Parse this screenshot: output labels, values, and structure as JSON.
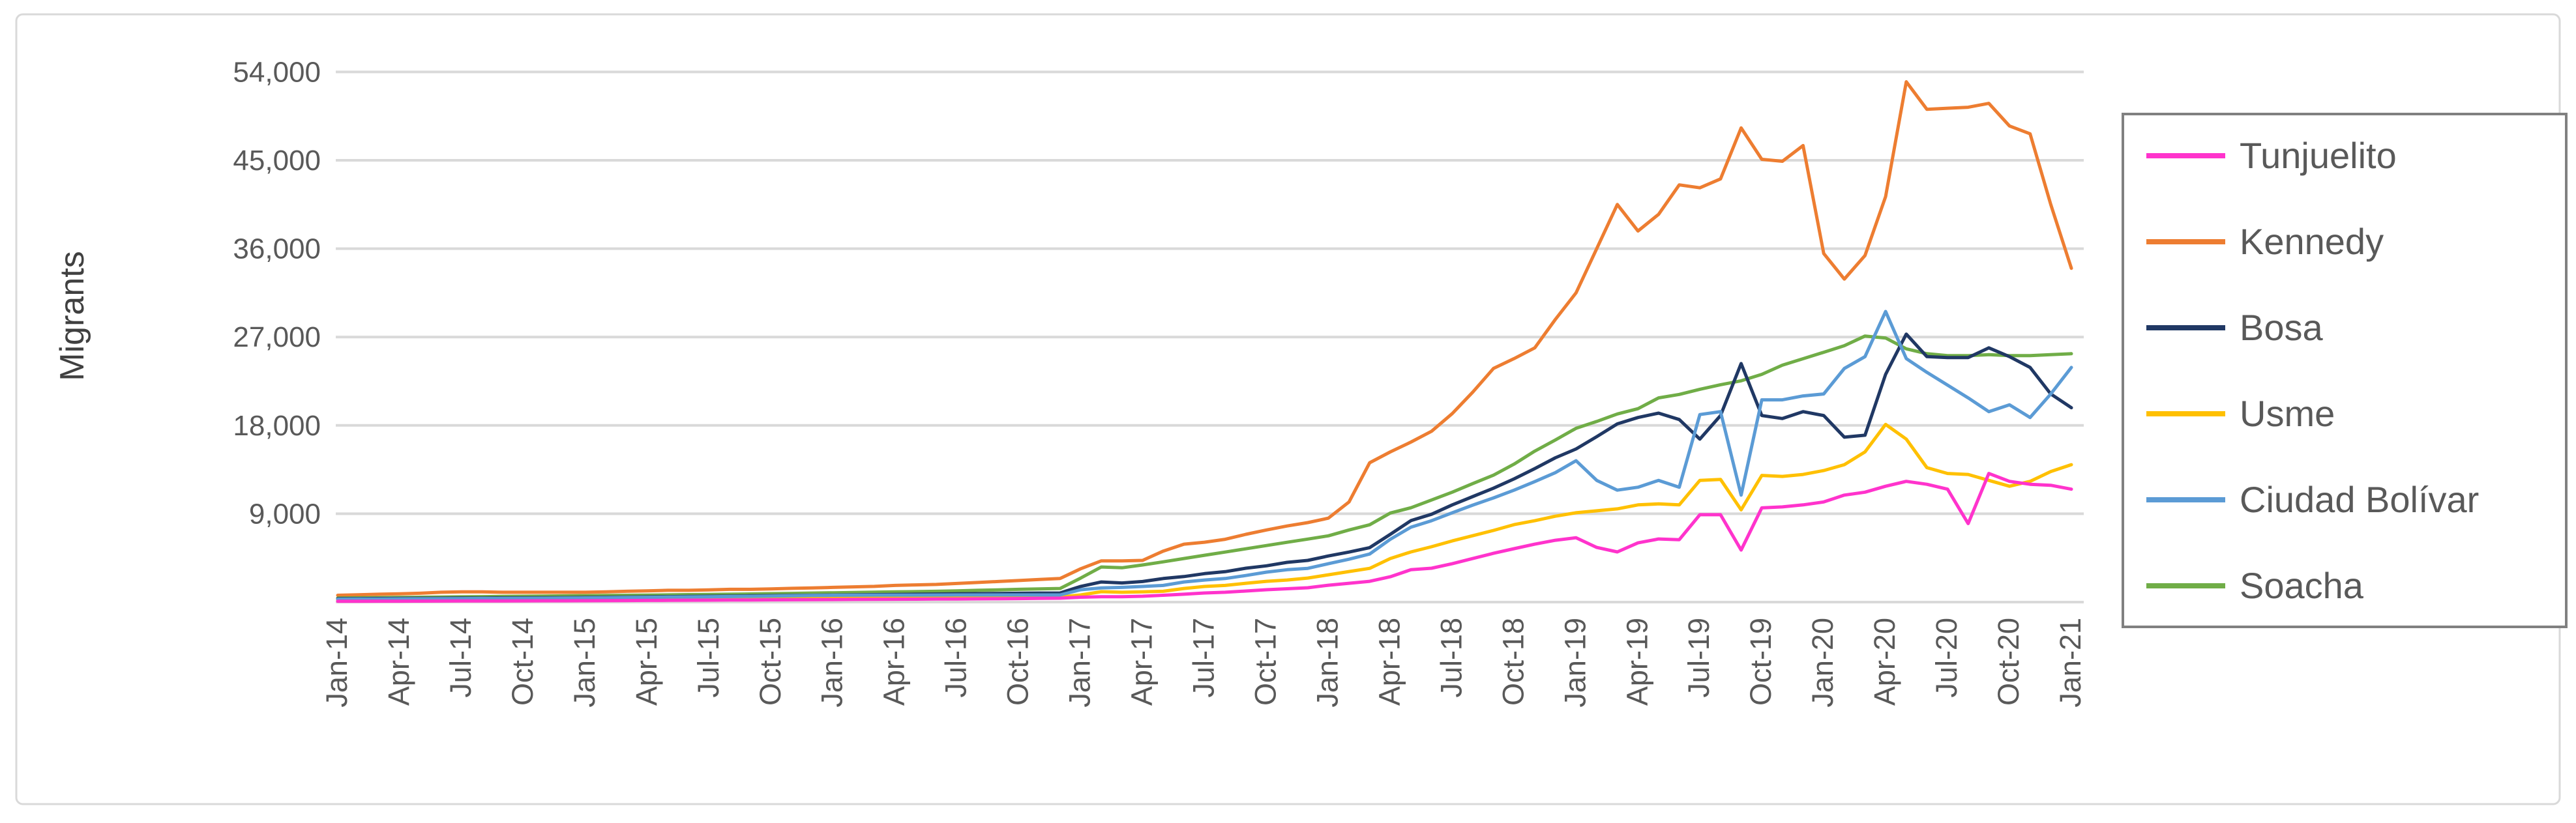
{
  "chart_data": {
    "type": "line",
    "title": "",
    "xlabel": "",
    "ylabel": "Migrants",
    "ylim": [
      0,
      57000
    ],
    "y_grid_interval": 9000,
    "grid": "horizontal-only",
    "legend_position": "right",
    "points_per_series": 85,
    "x_tick_every_n_points": 3,
    "y_ticks": [
      {
        "value": 9000,
        "label": "9,000"
      },
      {
        "value": 18000,
        "label": "18,000"
      },
      {
        "value": 27000,
        "label": "27,000"
      },
      {
        "value": 36000,
        "label": "36,000"
      },
      {
        "value": 45000,
        "label": "45,000"
      },
      {
        "value": 54000,
        "label": "54,000"
      }
    ],
    "x_tick_labels": [
      "Jan-14",
      "Apr-14",
      "Jul-14",
      "Oct-14",
      "Jan-15",
      "Apr-15",
      "Jul-15",
      "Oct-15",
      "Jan-16",
      "Apr-16",
      "Jul-16",
      "Oct-16",
      "Jan-17",
      "Apr-17",
      "Jul-17",
      "Oct-17",
      "Jan-18",
      "Apr-18",
      "Jul-18",
      "Oct-18",
      "Jan-19",
      "Apr-19",
      "Jul-19",
      "Oct-19",
      "Jan-20",
      "Apr-20",
      "Jul-20",
      "Oct-20",
      "Jan-21"
    ],
    "legend_order": [
      "Tunjuelito",
      "Kennedy",
      "Bosa",
      "Usme",
      "Ciudad Bolívar",
      "Soacha"
    ],
    "series": [
      {
        "name": "Kennedy",
        "color": "#ED7D31",
        "values": [
          700,
          750,
          800,
          850,
          900,
          1000,
          1050,
          1050,
          1000,
          1000,
          1000,
          1000,
          1000,
          1050,
          1100,
          1150,
          1200,
          1200,
          1250,
          1300,
          1300,
          1350,
          1400,
          1450,
          1500,
          1550,
          1600,
          1700,
          1750,
          1800,
          1900,
          2000,
          2100,
          2200,
          2300,
          2400,
          3400,
          4200,
          4200,
          4250,
          5200,
          5900,
          6100,
          6400,
          6900,
          7350,
          7750,
          8100,
          8550,
          10200,
          14200,
          15300,
          16300,
          17400,
          19200,
          21400,
          23800,
          24800,
          25900,
          28800,
          31500,
          36000,
          40500,
          37800,
          39500,
          42500,
          42200,
          43100,
          48300,
          45100,
          44900,
          46500,
          35500,
          32900,
          35300,
          41300,
          53000,
          50200,
          50300,
          50400,
          50800,
          48500,
          47700,
          40500,
          34000
        ]
      },
      {
        "name": "Soacha",
        "color": "#70AD47",
        "values": [
          420,
          440,
          460,
          480,
          500,
          520,
          540,
          560,
          580,
          600,
          620,
          640,
          660,
          680,
          700,
          720,
          740,
          760,
          780,
          800,
          830,
          860,
          890,
          920,
          950,
          980,
          1010,
          1040,
          1070,
          1100,
          1150,
          1200,
          1250,
          1300,
          1350,
          1390,
          2450,
          3580,
          3500,
          3780,
          4100,
          4440,
          4770,
          5100,
          5430,
          5760,
          6090,
          6420,
          6750,
          7350,
          7880,
          9070,
          9610,
          10400,
          11200,
          12070,
          12930,
          14060,
          15380,
          16510,
          17700,
          18400,
          19160,
          19700,
          20800,
          21150,
          21680,
          22140,
          22540,
          23200,
          24130,
          24790,
          25450,
          26120,
          27100,
          26900,
          25800,
          25300,
          25100,
          25100,
          25200,
          25100,
          25100,
          25200,
          25300
        ]
      },
      {
        "name": "Bosa",
        "color": "#203864",
        "values": [
          350,
          360,
          370,
          380,
          390,
          400,
          410,
          420,
          430,
          440,
          450,
          460,
          480,
          500,
          520,
          540,
          560,
          580,
          600,
          620,
          640,
          660,
          680,
          700,
          720,
          740,
          760,
          780,
          800,
          820,
          840,
          860,
          880,
          900,
          920,
          930,
          1600,
          2050,
          1950,
          2100,
          2400,
          2600,
          2900,
          3100,
          3450,
          3700,
          4050,
          4250,
          4700,
          5100,
          5550,
          6900,
          8300,
          8950,
          9900,
          10750,
          11600,
          12550,
          13600,
          14700,
          15600,
          16850,
          18150,
          18800,
          19250,
          18600,
          16600,
          19000,
          24300,
          19000,
          18700,
          19400,
          19000,
          16800,
          17000,
          23200,
          27300,
          25000,
          24900,
          24900,
          25900,
          25000,
          23900,
          21200,
          19800
        ]
      },
      {
        "name": "Usme",
        "color": "#FFC000",
        "values": [
          220,
          230,
          240,
          250,
          260,
          270,
          280,
          290,
          300,
          310,
          320,
          330,
          340,
          350,
          360,
          370,
          380,
          390,
          400,
          410,
          420,
          430,
          440,
          450,
          460,
          465,
          470,
          475,
          480,
          485,
          490,
          495,
          500,
          505,
          510,
          520,
          730,
          1060,
          1000,
          1050,
          1100,
          1390,
          1590,
          1700,
          1920,
          2120,
          2250,
          2450,
          2780,
          3110,
          3440,
          4440,
          5110,
          5640,
          6230,
          6760,
          7300,
          7890,
          8290,
          8750,
          9100,
          9300,
          9500,
          9900,
          10000,
          9900,
          12400,
          12500,
          9400,
          12900,
          12800,
          13000,
          13400,
          14000,
          15300,
          18100,
          16600,
          13700,
          13100,
          13000,
          12400,
          11800,
          12300,
          13300,
          14000
        ]
      },
      {
        "name": "Ciudad Bolívar",
        "color": "#5B9BD5",
        "values": [
          300,
          310,
          320,
          330,
          340,
          350,
          360,
          370,
          380,
          390,
          400,
          410,
          430,
          450,
          470,
          490,
          510,
          530,
          550,
          570,
          590,
          620,
          650,
          680,
          700,
          705,
          710,
          715,
          720,
          725,
          730,
          730,
          730,
          730,
          730,
          730,
          1260,
          1450,
          1500,
          1590,
          1700,
          2050,
          2250,
          2400,
          2710,
          3050,
          3300,
          3440,
          3910,
          4370,
          4900,
          6400,
          7630,
          8290,
          9100,
          9880,
          10610,
          11400,
          12270,
          13190,
          14400,
          12400,
          11400,
          11700,
          12400,
          11700,
          19100,
          19400,
          10900,
          20600,
          20600,
          21000,
          21200,
          23800,
          25000,
          29600,
          24800,
          23400,
          22100,
          20800,
          19400,
          20100,
          18800,
          21200,
          23900
        ]
      },
      {
        "name": "Tunjuelito",
        "color": "#FF33CC",
        "values": [
          80,
          85,
          90,
          95,
          100,
          105,
          110,
          115,
          120,
          125,
          130,
          135,
          140,
          150,
          160,
          170,
          180,
          190,
          200,
          210,
          220,
          230,
          240,
          250,
          260,
          270,
          280,
          290,
          300,
          310,
          320,
          330,
          340,
          360,
          380,
          400,
          500,
          550,
          550,
          600,
          700,
          800,
          930,
          1000,
          1130,
          1260,
          1360,
          1460,
          1720,
          1920,
          2120,
          2580,
          3300,
          3450,
          3910,
          4440,
          4970,
          5440,
          5900,
          6300,
          6560,
          5570,
          5110,
          6030,
          6430,
          6360,
          8900,
          8900,
          5300,
          9600,
          9700,
          9900,
          10200,
          10900,
          11200,
          11800,
          12300,
          12000,
          11500,
          8000,
          13100,
          12300,
          12000,
          11900,
          11500
        ]
      }
    ]
  },
  "style": {
    "gridline_color": "#D9D9D9",
    "axis_line_color": "#D9D9D9",
    "chart_border_color": "#D9D9D9",
    "legend_border_color": "#808080",
    "text_color": "#595959",
    "background": "#FFFFFF"
  }
}
